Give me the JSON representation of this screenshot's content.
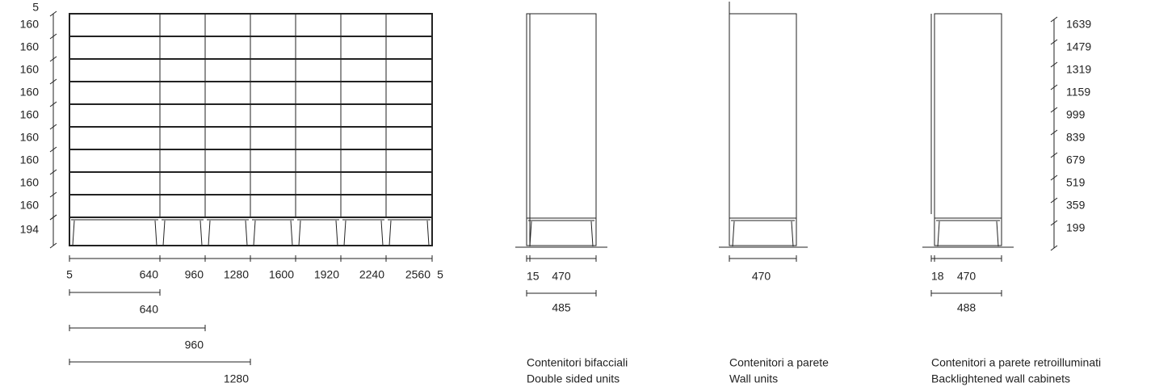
{
  "front_view": {
    "height_labels": [
      5,
      160,
      160,
      160,
      160,
      160,
      160,
      160,
      160,
      160,
      194
    ],
    "width_labels": [
      5,
      640,
      960,
      1280,
      1600,
      1920,
      2240,
      2560,
      5
    ],
    "span_labels": [
      640,
      960,
      1280
    ]
  },
  "side_views": [
    {
      "depth_labels": [
        15,
        470
      ],
      "total": 485,
      "caption": [
        "Contenitori bifacciali",
        "Double sided units"
      ]
    },
    {
      "depth_labels": [
        470
      ],
      "caption": [
        "Contenitori a parete",
        "Wall units"
      ]
    },
    {
      "depth_labels": [
        18,
        470
      ],
      "total": 488,
      "caption": [
        "Contenitori a parete retroilluminati",
        "Backlightened wall cabinets"
      ],
      "height_labels": [
        1639,
        1479,
        1319,
        1159,
        999,
        839,
        679,
        519,
        359,
        199
      ]
    }
  ]
}
